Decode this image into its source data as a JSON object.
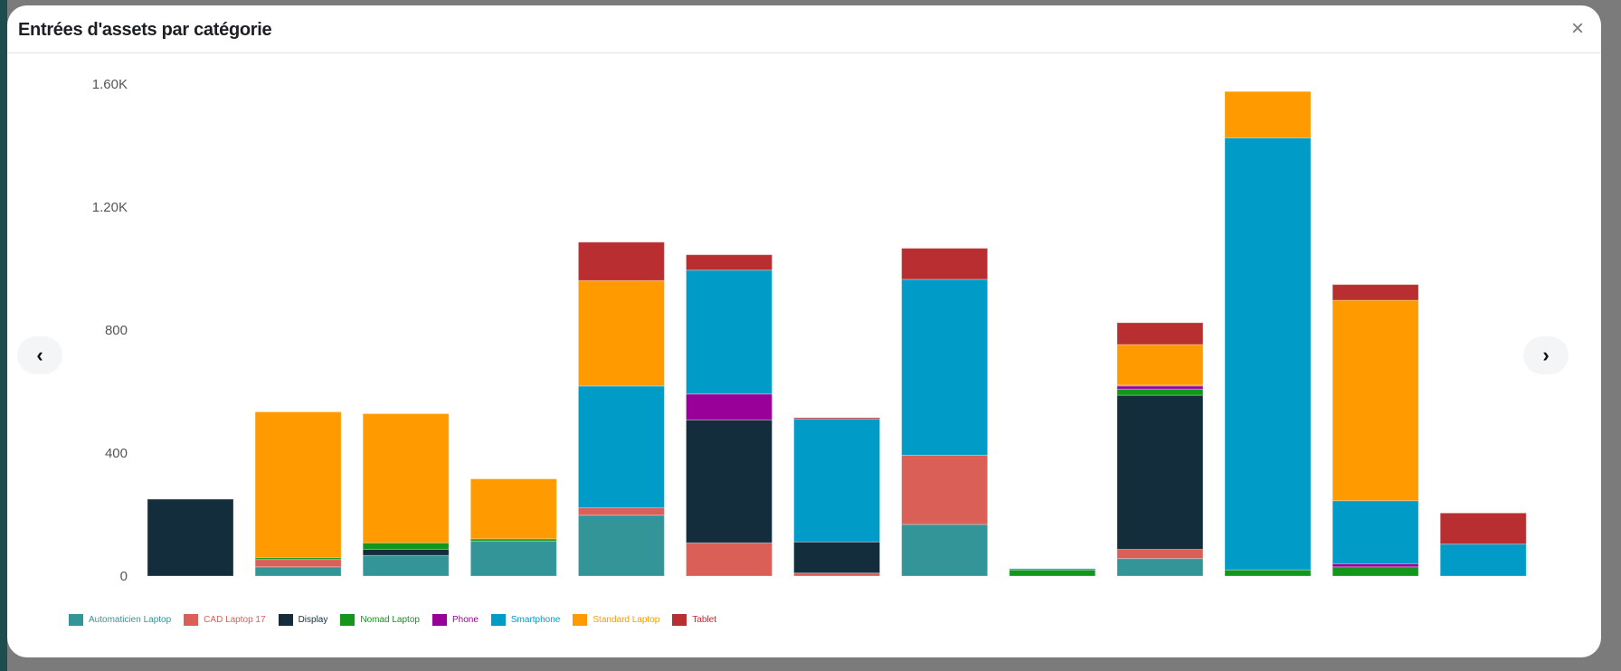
{
  "modal": {
    "title": "Entrées d'assets par catégorie",
    "close_icon": "close-icon",
    "prev_icon": "chevron-left-icon",
    "next_icon": "chevron-right-icon"
  },
  "chart_data": {
    "type": "bar",
    "stacked": true,
    "title": "Entrées d'assets par catégorie",
    "xlabel": "",
    "ylabel": "",
    "ylim": [
      0,
      1600
    ],
    "y_ticks": [
      0,
      400,
      800,
      1200,
      1600
    ],
    "y_tick_labels": [
      "0",
      "400",
      "800",
      "1.20K",
      "1.60K"
    ],
    "grid": false,
    "legend_position": "bottom-left",
    "categories": [
      "",
      "",
      "",
      "",
      "",
      "",
      "",
      "",
      "",
      "",
      "",
      "",
      ""
    ],
    "series": [
      {
        "name": "Automaticien Laptop",
        "color": "#339597",
        "values": [
          0,
          30,
          67,
          114,
          198,
          0,
          0,
          168,
          0,
          57,
          0,
          0,
          0
        ]
      },
      {
        "name": "CAD Laptop 17",
        "color": "#d95f57",
        "values": [
          0,
          24,
          0,
          0,
          24,
          108,
          10,
          225,
          0,
          30,
          0,
          0,
          0
        ]
      },
      {
        "name": "Display",
        "color": "#132d3c",
        "values": [
          250,
          0,
          20,
          0,
          0,
          400,
          101,
          0,
          0,
          501,
          0,
          0,
          0
        ]
      },
      {
        "name": "Nomad Laptop",
        "color": "#12961c",
        "values": [
          0,
          6,
          21,
          7,
          0,
          0,
          0,
          0,
          20,
          20,
          20,
          30,
          0
        ]
      },
      {
        "name": "Phone",
        "color": "#990099",
        "values": [
          0,
          0,
          0,
          0,
          0,
          84,
          0,
          0,
          0,
          10,
          0,
          10,
          0
        ]
      },
      {
        "name": "Smartphone",
        "color": "#019bc8",
        "values": [
          0,
          0,
          0,
          0,
          396,
          403,
          400,
          572,
          4,
          3,
          1405,
          205,
          104
        ]
      },
      {
        "name": "Standard Laptop",
        "color": "#ff9a00",
        "values": [
          0,
          474,
          420,
          195,
          343,
          0,
          0,
          0,
          0,
          132,
          151,
          652,
          0
        ]
      },
      {
        "name": "Tablet",
        "color": "#b92e31",
        "values": [
          0,
          0,
          0,
          0,
          125,
          50,
          4,
          101,
          0,
          71,
          0,
          51,
          101
        ]
      }
    ]
  }
}
